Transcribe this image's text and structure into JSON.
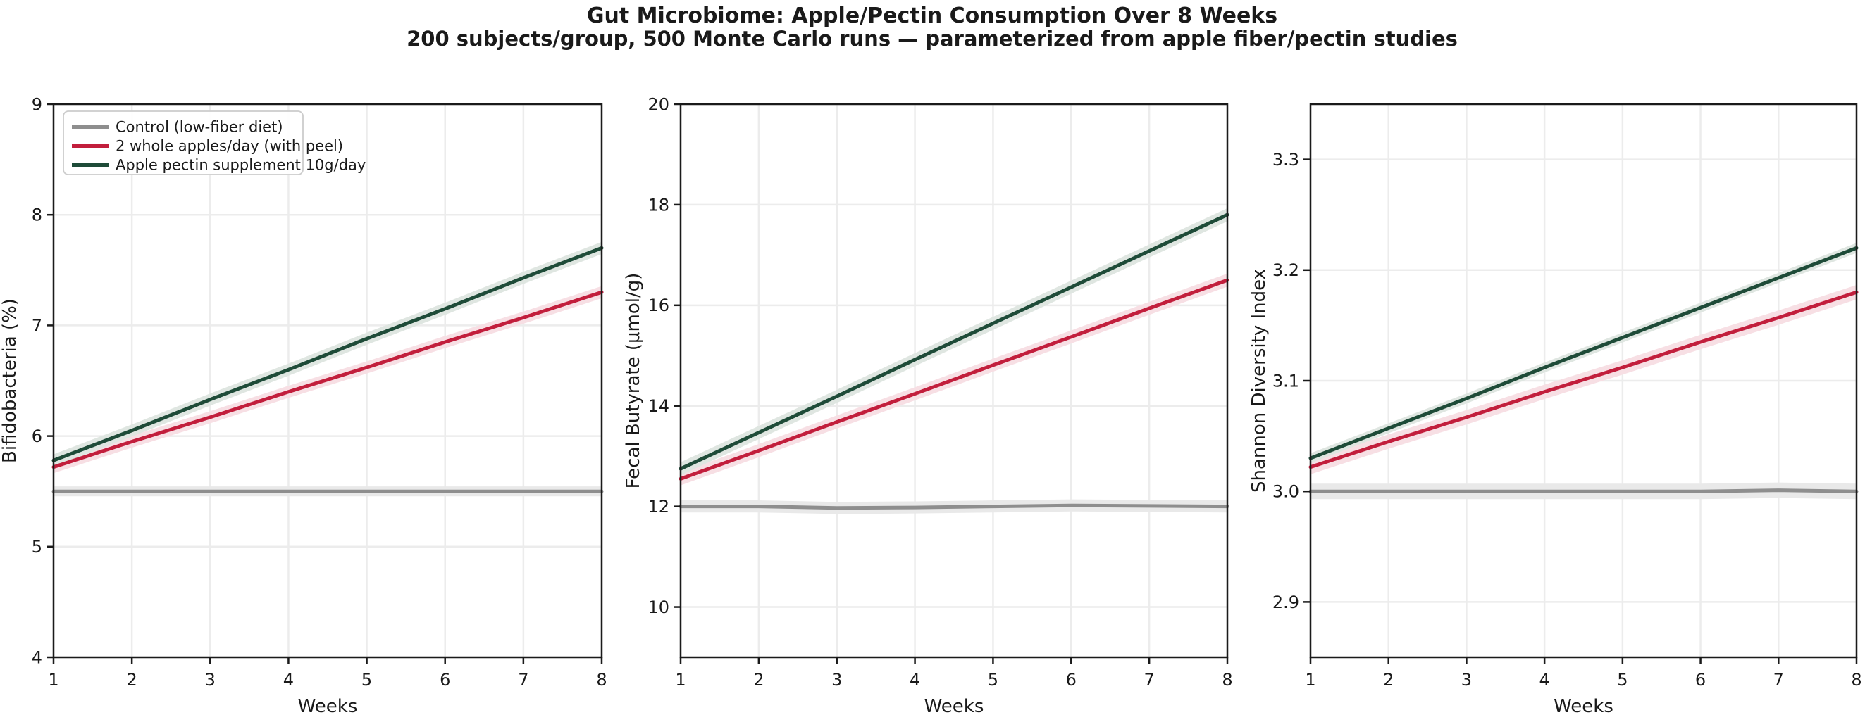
{
  "title": "Gut Microbiome: Apple/Pectin Consumption Over 8 Weeks",
  "subtitle": "200 subjects/group, 500 Monte Carlo runs — parameterized from apple fiber/pectin studies",
  "colors": {
    "control_line": "#8E8E8E",
    "control_band": "#E9E9E9",
    "apples_line": "#C21E3C",
    "apples_band": "#F7DFE4",
    "pectin_line": "#1E4B38",
    "pectin_band": "#DFE6E1",
    "grid": "#ECECEC",
    "spine": "#1A1A1A",
    "text": "#1a1a1a",
    "legend_border": "#CCCCCC"
  },
  "legend": {
    "entries": [
      "Control (low-fiber diet)",
      "2 whole apples/day (with peel)",
      "Apple pectin supplement 10g/day"
    ],
    "position": "upper left"
  },
  "chart_data": [
    {
      "type": "line",
      "xlabel": "Weeks",
      "ylabel": "Bifidobacteria (%)",
      "x": [
        1,
        2,
        3,
        4,
        5,
        6,
        7,
        8
      ],
      "xlim": [
        1,
        8
      ],
      "xtick_labels": [
        "1",
        "2",
        "3",
        "4",
        "5",
        "6",
        "7",
        "8"
      ],
      "ylim": [
        4,
        9
      ],
      "yticks": [
        4,
        5,
        6,
        7,
        8,
        9
      ],
      "ytick_labels": [
        "4",
        "5",
        "6",
        "7",
        "8",
        "9"
      ],
      "grid": true,
      "legend_show": true,
      "series": [
        {
          "name": "Control (low-fiber diet)",
          "color": "#8E8E8E",
          "band_color": "#E9E9E9",
          "band": 0.045,
          "values": [
            5.5,
            5.5,
            5.5,
            5.5,
            5.5,
            5.5,
            5.5,
            5.5
          ]
        },
        {
          "name": "2 whole apples/day (with peel)",
          "color": "#C21E3C",
          "band_color": "#F7DFE4",
          "band": 0.055,
          "values": [
            5.72,
            5.95,
            6.17,
            6.4,
            6.62,
            6.85,
            7.07,
            7.3
          ]
        },
        {
          "name": "Apple pectin supplement 10g/day",
          "color": "#1E4B38",
          "band_color": "#DFE6E1",
          "band": 0.055,
          "values": [
            5.78,
            6.05,
            6.33,
            6.6,
            6.88,
            7.15,
            7.43,
            7.7
          ]
        }
      ]
    },
    {
      "type": "line",
      "xlabel": "Weeks",
      "ylabel": "Fecal Butyrate (μmol/g)",
      "x": [
        1,
        2,
        3,
        4,
        5,
        6,
        7,
        8
      ],
      "xlim": [
        1,
        8
      ],
      "xtick_labels": [
        "1",
        "2",
        "3",
        "4",
        "5",
        "6",
        "7",
        "8"
      ],
      "ylim": [
        9,
        20
      ],
      "yticks": [
        10,
        12,
        14,
        16,
        18,
        20
      ],
      "ytick_labels": [
        "10",
        "12",
        "14",
        "16",
        "18",
        "20"
      ],
      "grid": true,
      "legend_show": false,
      "series": [
        {
          "name": "Control (low-fiber diet)",
          "color": "#8E8E8E",
          "band_color": "#E9E9E9",
          "band": 0.12,
          "values": [
            12.0,
            12.0,
            11.97,
            11.98,
            12.0,
            12.02,
            12.01,
            12.0
          ]
        },
        {
          "name": "2 whole apples/day (with peel)",
          "color": "#C21E3C",
          "band_color": "#F7DFE4",
          "band": 0.13,
          "values": [
            12.55,
            13.11,
            13.68,
            14.24,
            14.81,
            15.37,
            15.94,
            16.5
          ]
        },
        {
          "name": "Apple pectin supplement 10g/day",
          "color": "#1E4B38",
          "band_color": "#DFE6E1",
          "band": 0.13,
          "values": [
            12.75,
            13.47,
            14.19,
            14.92,
            15.64,
            16.36,
            17.08,
            17.8
          ]
        }
      ]
    },
    {
      "type": "line",
      "xlabel": "Weeks",
      "ylabel": "Shannon Diversity Index",
      "x": [
        1,
        2,
        3,
        4,
        5,
        6,
        7,
        8
      ],
      "xlim": [
        1,
        8
      ],
      "xtick_labels": [
        "1",
        "2",
        "3",
        "4",
        "5",
        "6",
        "7",
        "8"
      ],
      "ylim": [
        2.85,
        3.35
      ],
      "yticks": [
        2.9,
        3.0,
        3.1,
        3.2,
        3.3
      ],
      "ytick_labels": [
        "2.9",
        "3.0",
        "3.1",
        "3.2",
        "3.3"
      ],
      "grid": true,
      "legend_show": false,
      "series": [
        {
          "name": "Control (low-fiber diet)",
          "color": "#8E8E8E",
          "band_color": "#E9E9E9",
          "band": 0.007,
          "values": [
            3.0,
            3.0,
            3.0,
            3.0,
            3.0,
            3.0,
            3.001,
            3.0
          ]
        },
        {
          "name": "2 whole apples/day (with peel)",
          "color": "#C21E3C",
          "band_color": "#F7DFE4",
          "band": 0.0065,
          "values": [
            3.022,
            3.045,
            3.067,
            3.09,
            3.112,
            3.135,
            3.157,
            3.18
          ]
        },
        {
          "name": "Apple pectin supplement 10g/day",
          "color": "#1E4B38",
          "band_color": "#DFE6E1",
          "band": 0.0045,
          "values": [
            3.03,
            3.057,
            3.084,
            3.112,
            3.139,
            3.166,
            3.193,
            3.22
          ]
        }
      ]
    }
  ]
}
